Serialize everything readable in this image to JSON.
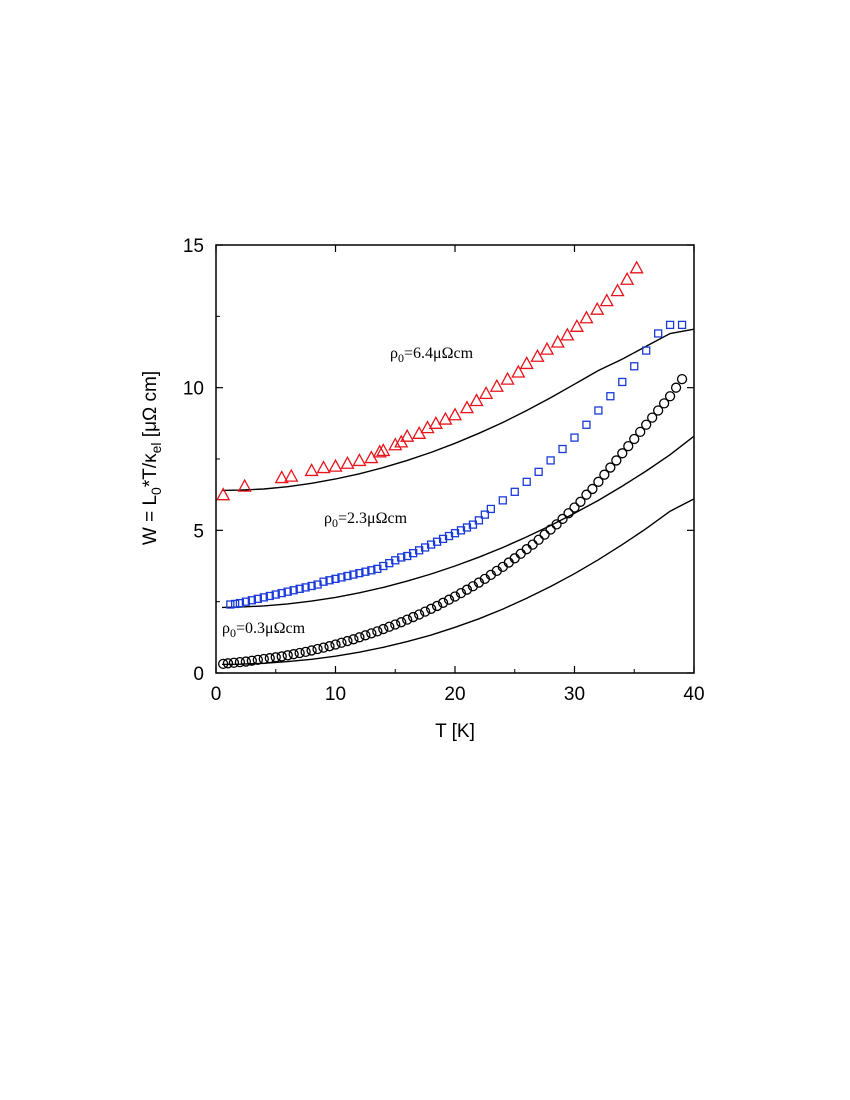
{
  "chart_data": {
    "type": "scatter",
    "xlabel": "T [K]",
    "ylabel": {
      "p1": "W = L",
      "sub0": "0",
      "p2": "*T/κ",
      "subel": "el",
      "p3": " [μΩ cm]"
    },
    "xlim": [
      0,
      40
    ],
    "ylim": [
      0,
      15
    ],
    "xticks": [
      0,
      10,
      20,
      30,
      40
    ],
    "yticks": [
      0,
      5,
      10,
      15
    ],
    "grid": false,
    "annotations": [
      {
        "rho": "ρ",
        "sub": "0",
        "text": "=6.4μΩcm",
        "at": [
          15,
          11
        ]
      },
      {
        "rho": "ρ",
        "sub": "0",
        "text": "=2.3μΩcm",
        "at": [
          9,
          5.3
        ]
      },
      {
        "rho": "ρ",
        "sub": "0",
        "text": "=0.3μΩcm",
        "at": [
          0.5,
          1.35
        ]
      }
    ],
    "series": [
      {
        "marker": "triangle",
        "color": "#e8141b",
        "x": [
          0.6,
          2.4,
          5.5,
          6.3,
          8,
          9,
          10,
          11,
          12,
          13,
          13.7,
          14,
          15,
          15.5,
          16,
          17,
          17.7,
          18.4,
          19.2,
          20,
          21,
          21.8,
          22.6,
          23.5,
          24.4,
          25.3,
          26,
          26.9,
          27.7,
          28.6,
          29.4,
          30.2,
          31,
          31.9,
          32.7,
          33.6,
          34.4,
          35.2
        ],
        "y": [
          6.25,
          6.55,
          6.85,
          6.9,
          7.1,
          7.2,
          7.25,
          7.35,
          7.45,
          7.55,
          7.75,
          7.8,
          8.0,
          8.1,
          8.3,
          8.4,
          8.6,
          8.75,
          8.9,
          9.05,
          9.3,
          9.55,
          9.8,
          10.05,
          10.3,
          10.55,
          10.85,
          11.1,
          11.35,
          11.6,
          11.85,
          12.15,
          12.45,
          12.75,
          13.05,
          13.4,
          13.8,
          14.2
        ]
      },
      {
        "marker": "square",
        "color": "#1a3ad8",
        "x": [
          1.2,
          1.6,
          2.0,
          2.5,
          3.0,
          3.5,
          4.0,
          4.5,
          5.0,
          5.5,
          6.0,
          6.5,
          7.0,
          7.5,
          8.0,
          8.5,
          9.0,
          9.5,
          10.0,
          10.5,
          11.0,
          11.5,
          12.0,
          12.5,
          13.0,
          13.5,
          14.0,
          14.5,
          15.0,
          15.5,
          16.0,
          16.5,
          17.0,
          17.5,
          18.0,
          18.5,
          19.0,
          19.5,
          20.0,
          20.5,
          21.0,
          21.5,
          22.0,
          22.5,
          23.0,
          24.0,
          25.0,
          26.0,
          27.0,
          28.0,
          29.0,
          30.0,
          31.0,
          32.0,
          33.0,
          34.0,
          35.0,
          36.0,
          37.0,
          38.0,
          39.0
        ],
        "y": [
          2.4,
          2.42,
          2.45,
          2.5,
          2.55,
          2.6,
          2.65,
          2.7,
          2.75,
          2.8,
          2.85,
          2.9,
          2.95,
          3.0,
          3.05,
          3.1,
          3.2,
          3.25,
          3.3,
          3.35,
          3.4,
          3.45,
          3.5,
          3.55,
          3.6,
          3.65,
          3.75,
          3.85,
          3.95,
          4.05,
          4.1,
          4.2,
          4.3,
          4.4,
          4.5,
          4.6,
          4.7,
          4.8,
          4.9,
          5.0,
          5.1,
          5.2,
          5.35,
          5.55,
          5.75,
          6.05,
          6.35,
          6.7,
          7.05,
          7.45,
          7.85,
          8.25,
          8.7,
          9.2,
          9.7,
          10.2,
          10.75,
          11.3,
          11.9,
          12.2,
          12.2
        ]
      },
      {
        "marker": "circle",
        "color": "#000000",
        "x": [
          0.6,
          1,
          1.5,
          2,
          2.5,
          3,
          3.5,
          4,
          4.5,
          5,
          5.5,
          6,
          6.5,
          7,
          7.5,
          8,
          8.5,
          9,
          9.5,
          10,
          10.5,
          11,
          11.5,
          12,
          12.5,
          13,
          13.5,
          14,
          14.5,
          15,
          15.5,
          16,
          16.5,
          17,
          17.5,
          18,
          18.5,
          19,
          19.5,
          20,
          20.5,
          21,
          21.5,
          22,
          22.5,
          23,
          23.5,
          24,
          24.5,
          25,
          25.5,
          26,
          26.5,
          27,
          27.5,
          28,
          28.5,
          29,
          29.5,
          30,
          30.5,
          31,
          31.5,
          32,
          32.5,
          33,
          33.5,
          34,
          34.5,
          35,
          35.5,
          36,
          36.5,
          37,
          37.5,
          38,
          38.5,
          39
        ],
        "y": [
          0.32,
          0.34,
          0.36,
          0.38,
          0.4,
          0.43,
          0.46,
          0.49,
          0.52,
          0.55,
          0.58,
          0.62,
          0.66,
          0.7,
          0.74,
          0.79,
          0.84,
          0.89,
          0.94,
          1.0,
          1.06,
          1.12,
          1.18,
          1.25,
          1.32,
          1.39,
          1.46,
          1.54,
          1.62,
          1.7,
          1.78,
          1.87,
          1.96,
          2.05,
          2.15,
          2.25,
          2.35,
          2.46,
          2.57,
          2.68,
          2.8,
          2.92,
          3.04,
          3.17,
          3.3,
          3.44,
          3.58,
          3.72,
          3.87,
          4.02,
          4.18,
          4.34,
          4.5,
          4.67,
          4.85,
          5.03,
          5.21,
          5.4,
          5.6,
          5.8,
          6.0,
          6.25,
          6.45,
          6.7,
          6.95,
          7.2,
          7.45,
          7.7,
          7.95,
          8.2,
          8.45,
          8.7,
          8.95,
          9.2,
          9.45,
          9.7,
          10.0,
          10.3
        ]
      }
    ],
    "lines": [
      {
        "color": "#000000",
        "x": [
          0.5,
          2,
          4,
          6,
          8,
          10,
          12,
          14,
          16,
          18,
          20,
          22,
          24,
          26,
          28,
          30,
          32,
          34,
          36,
          38,
          40
        ],
        "y": [
          6.4,
          6.41,
          6.45,
          6.53,
          6.65,
          6.8,
          6.98,
          7.2,
          7.45,
          7.73,
          8.05,
          8.4,
          8.78,
          9.2,
          9.65,
          10.12,
          10.6,
          11.0,
          11.45,
          11.9,
          12.05
        ]
      },
      {
        "color": "#000000",
        "x": [
          0.5,
          2,
          4,
          6,
          8,
          10,
          12,
          14,
          16,
          18,
          20,
          22,
          24,
          26,
          28,
          30,
          32,
          34,
          36,
          38,
          40
        ],
        "y": [
          2.3,
          2.31,
          2.35,
          2.42,
          2.52,
          2.65,
          2.81,
          3.0,
          3.22,
          3.47,
          3.75,
          4.06,
          4.4,
          4.77,
          5.17,
          5.6,
          6.05,
          6.55,
          7.08,
          7.65,
          8.3
        ]
      },
      {
        "color": "#000000",
        "x": [
          0.5,
          2,
          4,
          6,
          8,
          10,
          12,
          14,
          16,
          18,
          20,
          22,
          24,
          26,
          28,
          30,
          32,
          34,
          36,
          38,
          40
        ],
        "y": [
          0.3,
          0.31,
          0.34,
          0.4,
          0.48,
          0.59,
          0.73,
          0.9,
          1.1,
          1.33,
          1.6,
          1.9,
          2.24,
          2.62,
          3.03,
          3.48,
          3.97,
          4.5,
          5.06,
          5.67,
          6.1
        ]
      }
    ]
  }
}
